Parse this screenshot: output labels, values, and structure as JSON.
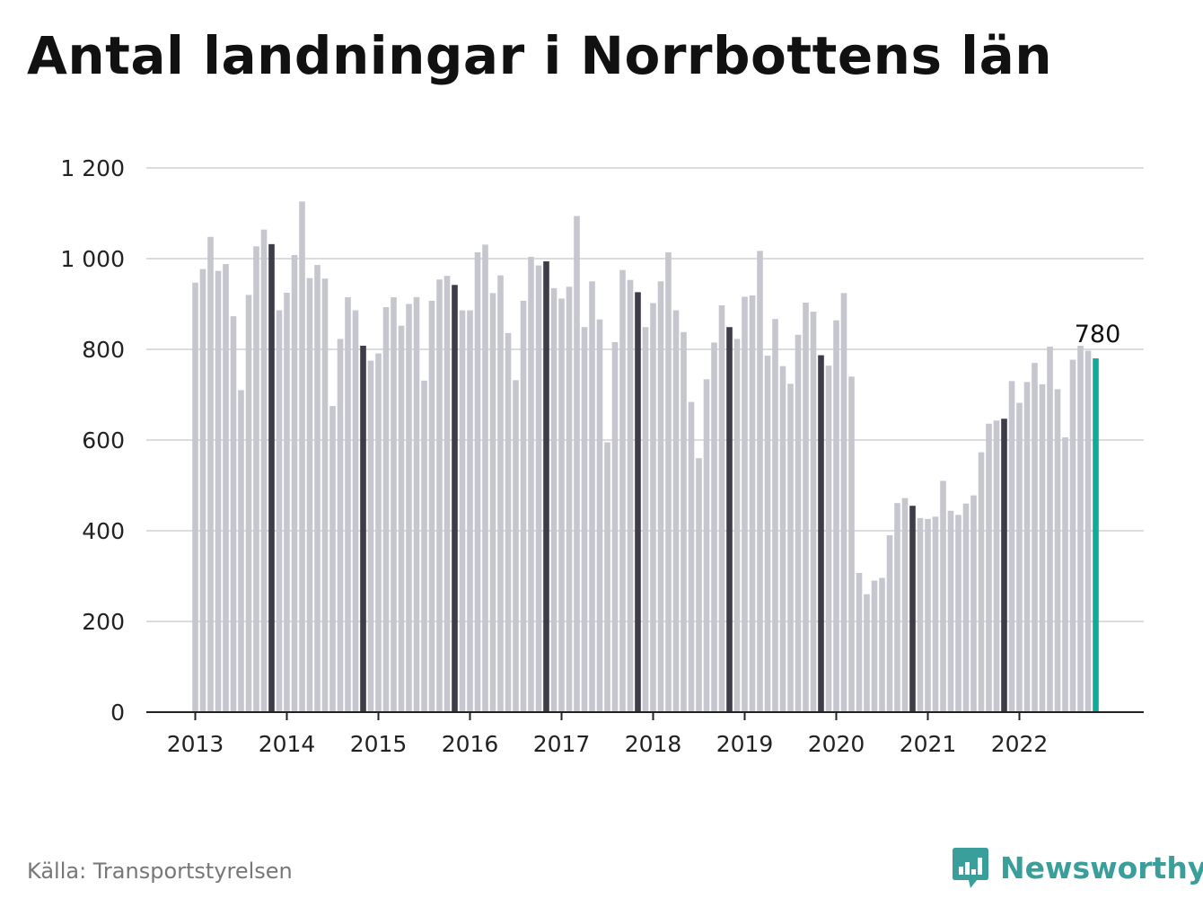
{
  "title": "Antal landningar i Norrbottens län",
  "source": "Källa: Transportstyrelsen",
  "brand": {
    "name": "Newsworthy",
    "icon": "newsworthy-logo-icon"
  },
  "colors": {
    "bar": "#c6c6cf",
    "highlight": "#3d3c48",
    "latest": "#12a89a",
    "grid": "#dcdcdc",
    "axis": "#222222",
    "brand": "#3a9e9a"
  },
  "chart_data": {
    "type": "bar",
    "title": "Antal landningar i Norrbottens län",
    "xlabel": "",
    "ylabel": "",
    "ylim": [
      0,
      1200
    ],
    "yticks": [
      0,
      200,
      400,
      600,
      800,
      1000,
      1200
    ],
    "ytick_labels": [
      "0",
      "200",
      "400",
      "600",
      "800",
      "1 000",
      "1 200"
    ],
    "xtick_labels": [
      "2013",
      "2014",
      "2015",
      "2016",
      "2017",
      "2018",
      "2019",
      "2020",
      "2021",
      "2022"
    ],
    "start": "2013-01",
    "frequency": "monthly",
    "highlight_month": "November",
    "last_label": "780",
    "values": [
      947,
      977,
      1048,
      973,
      988,
      873,
      710,
      920,
      1027,
      1064,
      1032,
      886,
      925,
      1008,
      1126,
      957,
      986,
      956,
      675,
      823,
      915,
      886,
      808,
      775,
      791,
      893,
      915,
      852,
      900,
      915,
      731,
      907,
      954,
      962,
      942,
      886,
      886,
      1014,
      1031,
      924,
      963,
      836,
      732,
      907,
      1004,
      985,
      994,
      935,
      912,
      938,
      1094,
      849,
      950,
      866,
      595,
      816,
      975,
      953,
      926,
      849,
      902,
      950,
      1014,
      886,
      838,
      684,
      560,
      734,
      815,
      897,
      849,
      823,
      916,
      919,
      1017,
      786,
      867,
      763,
      724,
      832,
      903,
      883,
      787,
      764,
      864,
      924,
      740,
      307,
      260,
      290,
      296,
      390,
      461,
      472,
      455,
      428,
      426,
      431,
      510,
      444,
      435,
      460,
      478,
      573,
      636,
      643,
      647,
      730,
      682,
      728,
      770,
      723,
      806,
      712,
      606,
      777,
      808,
      797,
      780
    ]
  }
}
